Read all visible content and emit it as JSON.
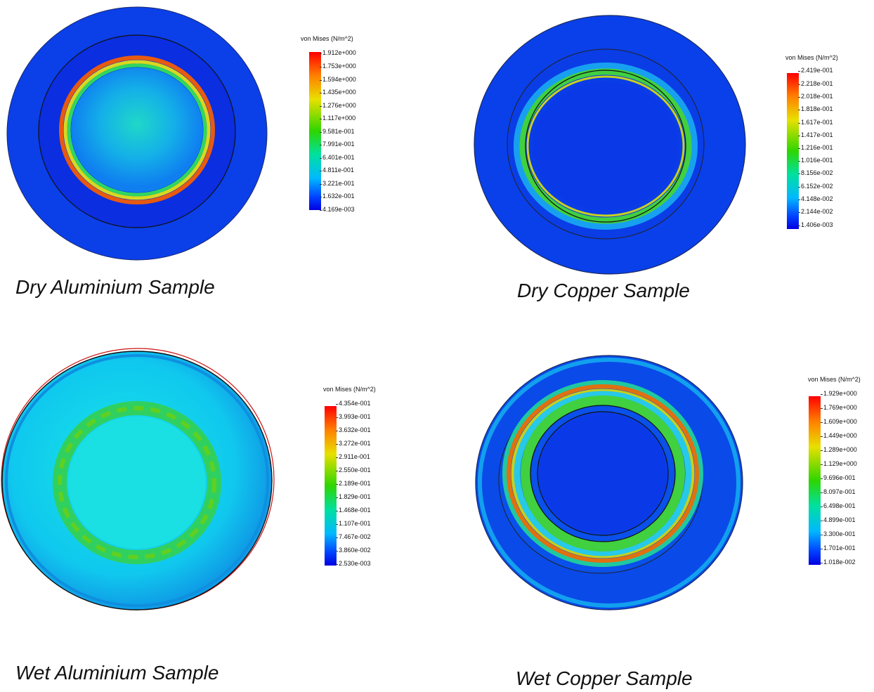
{
  "panels": [
    {
      "caption": "Dry Aluminium Sample",
      "legend": {
        "title": "von Mises (N/m^2)",
        "ticks": [
          "1.912e+000",
          "1.753e+000",
          "1.594e+000",
          "1.435e+000",
          "1.276e+000",
          "1.117e+000",
          "9.581e-001",
          "7.991e-001",
          "6.401e-001",
          "4.811e-001",
          "3.221e-001",
          "1.632e-001",
          "4.169e-003"
        ]
      }
    },
    {
      "caption": "Dry Copper Sample",
      "legend": {
        "title": "von Mises (N/m^2)",
        "ticks": [
          "2.419e-001",
          "2.218e-001",
          "2.018e-001",
          "1.818e-001",
          "1.617e-001",
          "1.417e-001",
          "1.216e-001",
          "1.016e-001",
          "8.156e-002",
          "6.152e-002",
          "4.148e-002",
          "2.144e-002",
          "1.406e-003"
        ]
      }
    },
    {
      "caption": "Wet Aluminium Sample",
      "legend": {
        "title": "von Mises (N/m^2)",
        "ticks": [
          "4.354e-001",
          "3.993e-001",
          "3.632e-001",
          "3.272e-001",
          "2.911e-001",
          "2.550e-001",
          "2.189e-001",
          "1.829e-001",
          "1.468e-001",
          "1.107e-001",
          "7.467e-002",
          "3.860e-002",
          "2.530e-003"
        ]
      }
    },
    {
      "caption": "Wet Copper Sample",
      "legend": {
        "title": "von Mises (N/m^2)",
        "ticks": [
          "1.929e+000",
          "1.769e+000",
          "1.609e+000",
          "1.449e+000",
          "1.289e+000",
          "1.129e+000",
          "9.696e-001",
          "8.097e-001",
          "6.498e-001",
          "4.899e-001",
          "3.300e-001",
          "1.701e-001",
          "1.018e-002"
        ]
      }
    }
  ]
}
